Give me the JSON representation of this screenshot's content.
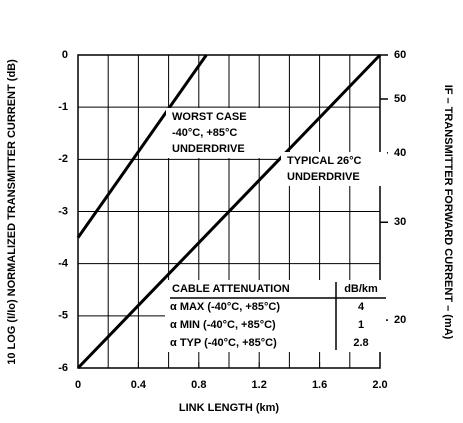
{
  "chart_data": {
    "type": "line",
    "ylabel": "10 LOG (I/Io) NORMALIZED TRANSMITTER CURRENT (dB)",
    "y2label": "IF – TRANSMITTER FORWARD CURRENT – (mA)",
    "xlabel": "LINK LENGTH (km)",
    "xlim": [
      0,
      2.0
    ],
    "xticks": [
      0,
      0.4,
      0.8,
      1.2,
      1.6,
      {
        "value": 2,
        "label": "2.0"
      }
    ],
    "xgrid": [
      0.2,
      0.4,
      0.6,
      0.8,
      1.0,
      1.2,
      1.4,
      1.6,
      1.8
    ],
    "ylim": [
      -6,
      0
    ],
    "yticks": [
      0,
      -1,
      -2,
      -3,
      -4,
      -5,
      -6
    ],
    "grid": true,
    "y2lim": [
      60,
      16.4
    ],
    "y2scale": "log",
    "y2ticks": [
      60,
      50,
      40,
      30,
      20
    ],
    "series": [
      {
        "color": "#000000",
        "x": [
          0,
          0.85
        ],
        "y": [
          -3.5,
          0
        ]
      },
      {
        "color": "#000000",
        "x": [
          0,
          2.0
        ],
        "y": [
          -6,
          0
        ]
      }
    ],
    "annotations": [
      {
        "lines": [
          "WORST CASE",
          "-40°C, +85°C",
          "UNDERDRIVE"
        ]
      },
      {
        "lines": [
          "TYPICAL 26°C",
          "UNDERDRIVE"
        ]
      }
    ],
    "table": {
      "header": [
        "CABLE ATTENUATION",
        "dB/km"
      ],
      "rows": [
        [
          "α MAX (-40°C, +85°C)",
          4
        ],
        [
          "α MIN (-40°C, +85°C)",
          1
        ],
        [
          "α TYP (-40°C, +85°C)",
          2.8
        ]
      ]
    }
  }
}
